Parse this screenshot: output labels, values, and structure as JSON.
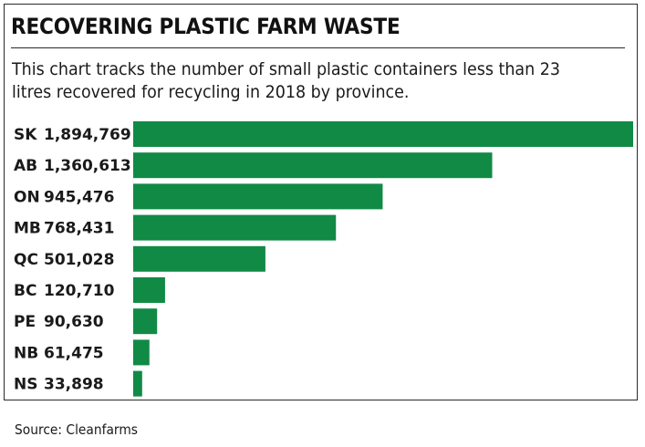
{
  "chart_data": {
    "type": "bar",
    "orientation": "horizontal",
    "title": "RECOVERING PLASTIC FARM WASTE",
    "subtitle": "This chart tracks the number of small plastic containers less than 23 litres recovered for recycling in 2018 by province.",
    "categories": [
      "SK",
      "AB",
      "ON",
      "MB",
      "QC",
      "BC",
      "PE",
      "NB",
      "NS"
    ],
    "values": [
      1894769,
      1360613,
      945476,
      768431,
      501028,
      120710,
      90630,
      61475,
      33898
    ],
    "value_labels": [
      "1,894,769",
      "1,360,613",
      "945,476",
      "768,431",
      "501,028",
      "120,710",
      "90,630",
      "61,475",
      "33,898"
    ],
    "xlim": [
      0,
      1894769
    ],
    "grid": false,
    "legend": "none",
    "bar_color": "#108a45",
    "source": "Source: Cleanfarms"
  }
}
